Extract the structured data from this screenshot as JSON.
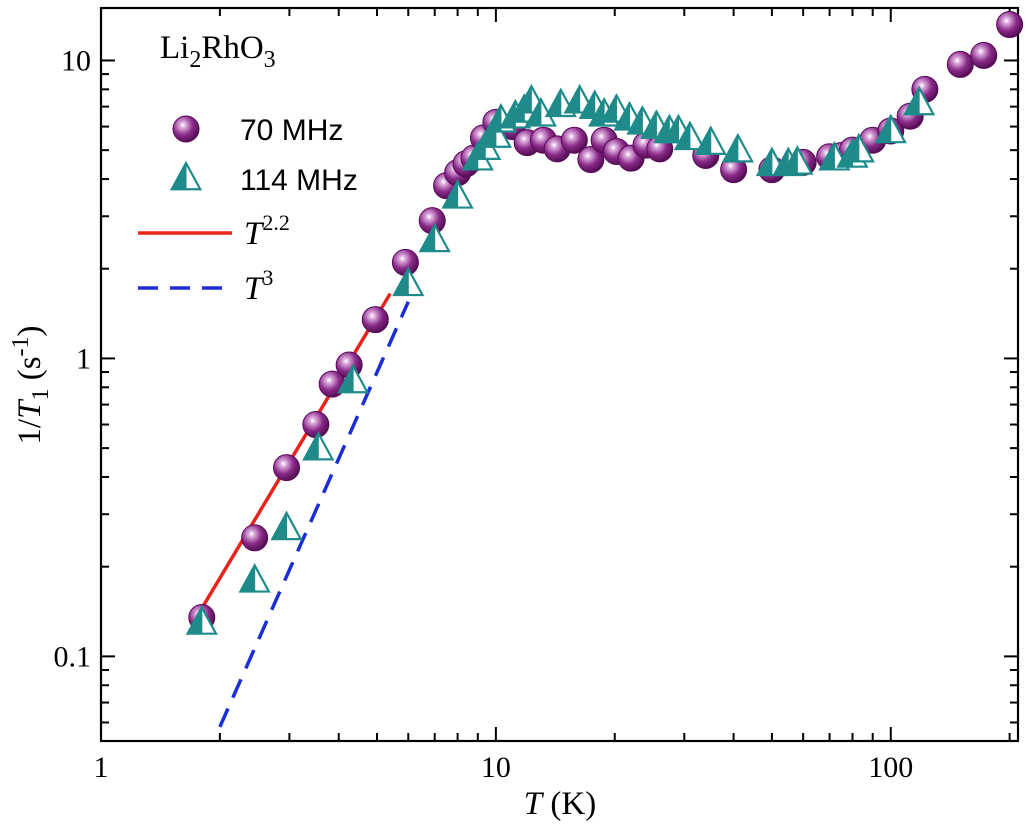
{
  "chart_data": {
    "type": "scatter",
    "title_parts": {
      "a": "Li",
      "b": "2",
      "c": "RhO",
      "d": "3"
    },
    "xlabel": {
      "sym": "T",
      "unit": " (K)"
    },
    "ylabel": {
      "pre": "1/",
      "sym": "T",
      "sub": "1",
      "unit_open": " (s",
      "unit_sup": "-1",
      "unit_close": ")"
    },
    "xscale": "log",
    "yscale": "log",
    "xlim": [
      1,
      210
    ],
    "ylim": [
      0.052,
      15
    ],
    "xticks": [
      {
        "value": 1,
        "label": "1"
      },
      {
        "value": 10,
        "label": "10"
      },
      {
        "value": 100,
        "label": "100"
      }
    ],
    "yticks": [
      {
        "value": 0.1,
        "label": "0.1"
      },
      {
        "value": 1,
        "label": "1"
      },
      {
        "value": 10,
        "label": "10"
      }
    ],
    "legend_position": "top-left",
    "series": [
      {
        "name": "70 MHz",
        "marker": "sphere",
        "color": "#7a1a7a",
        "x": [
          1.8,
          2.45,
          2.95,
          3.5,
          3.85,
          4.25,
          4.95,
          5.9,
          6.9,
          7.5,
          8.0,
          8.4,
          8.8,
          9.3,
          10.0,
          11.0,
          12.0,
          13.2,
          14.3,
          15.8,
          17.4,
          18.8,
          20.2,
          22.0,
          24.0,
          26.0,
          34.0,
          40.0,
          50.0,
          60.0,
          70.0,
          75.0,
          80.0,
          90.0,
          100.0,
          112.0,
          122.0,
          150.0,
          172.0,
          200.0
        ],
        "y": [
          0.135,
          0.25,
          0.43,
          0.6,
          0.82,
          0.95,
          1.35,
          2.1,
          2.9,
          3.8,
          4.2,
          4.5,
          4.7,
          5.5,
          6.2,
          6.0,
          5.3,
          5.4,
          5.05,
          5.4,
          4.65,
          5.4,
          4.95,
          4.7,
          5.2,
          5.05,
          4.8,
          4.3,
          4.3,
          4.55,
          4.75,
          4.8,
          5.0,
          5.4,
          5.8,
          6.5,
          8.0,
          9.7,
          10.4,
          13.2
        ]
      },
      {
        "name": "114 MHz",
        "marker": "triangle",
        "color": "#1e8a8a",
        "x": [
          1.8,
          2.45,
          2.95,
          3.55,
          4.35,
          6.0,
          7.0,
          8.0,
          9.0,
          9.4,
          10.0,
          10.3,
          11.2,
          11.8,
          12.3,
          13.0,
          14.6,
          16.3,
          17.8,
          18.8,
          20.2,
          21.8,
          23.5,
          25.5,
          27.5,
          29.0,
          31.0,
          35.0,
          41.0,
          50.0,
          55.0,
          58.0,
          72.0,
          80.0,
          83.0,
          100.0,
          118.0
        ],
        "y": [
          0.13,
          0.18,
          0.27,
          0.5,
          0.84,
          1.78,
          2.5,
          3.5,
          4.7,
          5.1,
          5.6,
          6.3,
          6.5,
          6.8,
          7.3,
          6.6,
          7.1,
          7.3,
          7.0,
          6.6,
          6.8,
          6.4,
          6.2,
          6.0,
          5.8,
          5.8,
          5.5,
          5.3,
          5.0,
          4.5,
          4.5,
          4.55,
          4.7,
          4.8,
          5.0,
          5.8,
          7.2
        ]
      },
      {
        "name": "T",
        "sup": "2.2",
        "style": "solid",
        "color": "#e8231c",
        "x": [
          1.8,
          5.4
        ],
        "y": [
          0.145,
          1.65
        ]
      },
      {
        "name": "T",
        "sup": "3",
        "style": "dashed",
        "color": "#1a2ed6",
        "x": [
          2.0,
          6.0
        ],
        "y": [
          0.058,
          1.55
        ]
      }
    ]
  }
}
